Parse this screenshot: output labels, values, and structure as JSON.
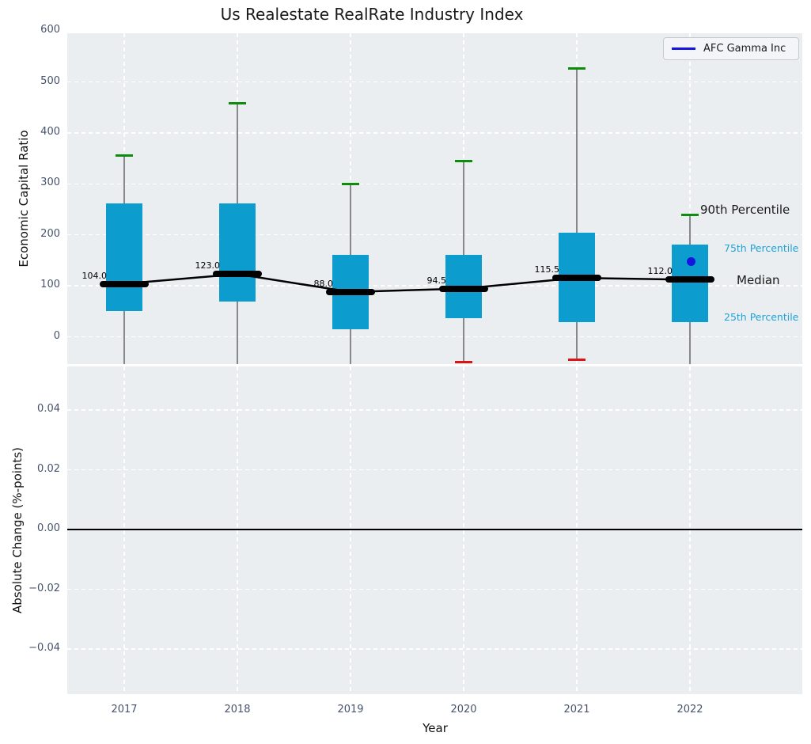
{
  "title": "Us Realestate RealRate Industry Index",
  "legend": {
    "label": "AFC Gamma Inc"
  },
  "colors": {
    "box_fill": "#0d9cce",
    "p90_cap": "#0e8c0e",
    "p10_cap": "#dd1414",
    "company_point": "#1515e0",
    "median": "#000000",
    "plot_background": "#eaeef0",
    "grid": "#ffffff",
    "tick_label": "#46536b",
    "percentile_label_blue": "#1fa3d9",
    "whisker": "#888888"
  },
  "chart_data": [
    {
      "type": "box",
      "title": "Us Realestate RealRate Industry Index",
      "ylabel": "Economic Capital Ratio",
      "ylim": [
        -54,
        596
      ],
      "yticks": [
        0,
        100,
        200,
        300,
        400,
        500,
        600
      ],
      "ytick_labels": [
        "0",
        "100",
        "200",
        "300",
        "400",
        "500",
        "600"
      ],
      "categories": [
        "2017",
        "2018",
        "2019",
        "2020",
        "2021",
        "2022"
      ],
      "grid": true,
      "legend_position": "upper right",
      "boxes": [
        {
          "year": "2017",
          "median": 104.0,
          "median_label": "104.0",
          "q1": 51,
          "q3": 262,
          "p90": 356,
          "p10": null
        },
        {
          "year": "2018",
          "median": 123.0,
          "median_label": "123.0",
          "q1": 69,
          "q3": 261,
          "p90": 458,
          "p10": null
        },
        {
          "year": "2019",
          "median": 88.0,
          "median_label": "88.0",
          "q1": 15,
          "q3": 160,
          "p90": 299,
          "p10": null
        },
        {
          "year": "2020",
          "median": 94.5,
          "median_label": "94.5",
          "q1": 36,
          "q3": 161,
          "p90": 345,
          "p10": -49
        },
        {
          "year": "2021",
          "median": 115.5,
          "median_label": "115.5",
          "q1": 28,
          "q3": 204,
          "p90": 526,
          "p10": -45
        },
        {
          "year": "2022",
          "median": 112.0,
          "median_label": "112.0",
          "q1": 28,
          "q3": 181,
          "p90": 239,
          "p10": null
        }
      ],
      "company_point": {
        "label": "AFC Gamma Inc",
        "year": "2022",
        "value": 148
      },
      "annotations": {
        "p90": "90th Percentile",
        "p75": "75th Percentile",
        "median": "Median",
        "p25": "25th Percentile"
      }
    },
    {
      "type": "line",
      "ylabel": "Absolute Change (%-points)",
      "xlabel": "Year",
      "ylim": [
        -0.055,
        0.055
      ],
      "yticks": [
        0.04,
        0.02,
        0.0,
        -0.02,
        -0.04
      ],
      "ytick_labels": [
        "0.04",
        "0.02",
        "0.00",
        "−0.02",
        "−0.04"
      ],
      "categories": [
        "2017",
        "2018",
        "2019",
        "2020",
        "2021",
        "2022"
      ],
      "zero_line": 0.0,
      "series": []
    }
  ]
}
